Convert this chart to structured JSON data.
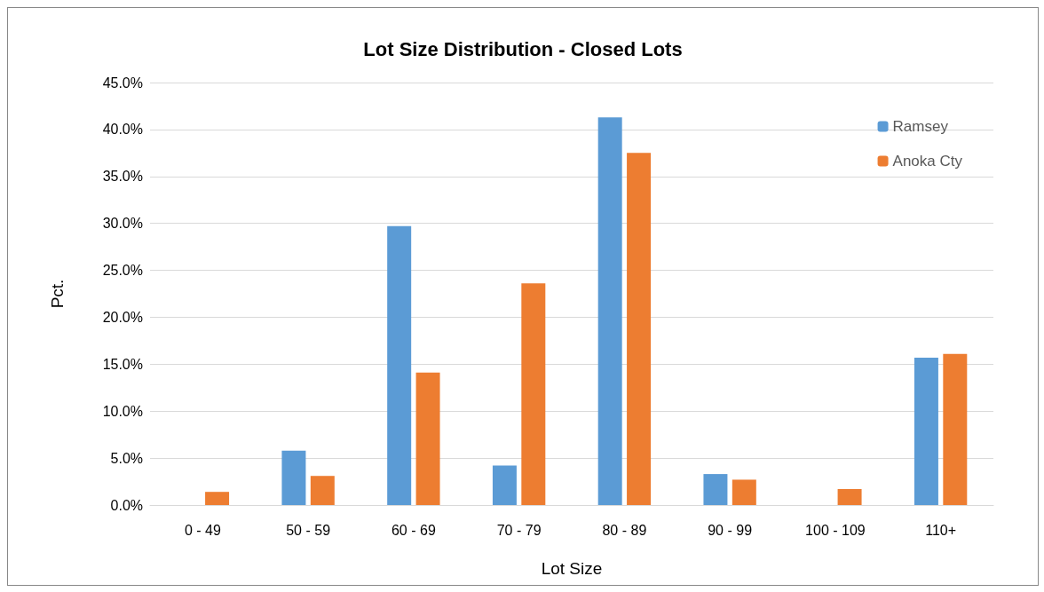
{
  "chart_data": {
    "type": "bar",
    "title": "Lot Size Distribution - Closed Lots",
    "xlabel": "Lot Size",
    "ylabel": "Pct.",
    "categories": [
      "0 - 49",
      "50 - 59",
      "60 - 69",
      "70 - 79",
      "80 - 89",
      "90 - 99",
      "100 - 109",
      "110+"
    ],
    "series": [
      {
        "name": "Ramsey",
        "color": "#5b9bd5",
        "values": [
          0,
          5.8,
          29.7,
          4.2,
          41.3,
          3.3,
          0,
          15.7
        ]
      },
      {
        "name": "Anoka Cty",
        "color": "#ed7d31",
        "values": [
          1.4,
          3.1,
          14.1,
          23.6,
          37.5,
          2.7,
          1.7,
          16.1
        ]
      }
    ],
    "ylim": [
      0,
      45
    ],
    "yticks": [
      {
        "value": 0,
        "label": "0.0%"
      },
      {
        "value": 5,
        "label": "5.0%"
      },
      {
        "value": 10,
        "label": "10.0%"
      },
      {
        "value": 15,
        "label": "15.0%"
      },
      {
        "value": 20,
        "label": "20.0%"
      },
      {
        "value": 25,
        "label": "25.0%"
      },
      {
        "value": 30,
        "label": "30.0%"
      },
      {
        "value": 35,
        "label": "35.0%"
      },
      {
        "value": 40,
        "label": "40.0%"
      },
      {
        "value": 45,
        "label": "45.0%"
      }
    ],
    "grid": "y",
    "legend": "top right"
  }
}
